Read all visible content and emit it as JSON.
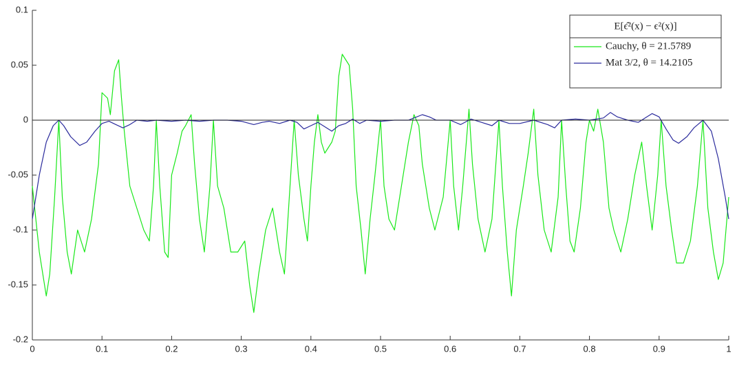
{
  "chart_data": {
    "type": "line",
    "legend_title": "E[ϵ̂²(x) − ϵ²(x)]",
    "legend_position": "top-right",
    "reference_line": 0,
    "xlim": [
      0,
      1
    ],
    "xticks": [
      0,
      0.1,
      0.2,
      0.3,
      0.4,
      0.5,
      0.6,
      0.7,
      0.8,
      0.9,
      1
    ],
    "ylim": [
      -0.2,
      0.1
    ],
    "yticks": [
      -0.2,
      -0.15,
      -0.1,
      -0.05,
      0,
      0.05,
      0.1
    ],
    "series": [
      {
        "name": "Cauchy, θ = 21.5789",
        "color": "#18e818",
        "x": [
          0,
          0.01,
          0.02,
          0.025,
          0.032,
          0.038,
          0.043,
          0.05,
          0.056,
          0.065,
          0.075,
          0.085,
          0.095,
          0.1,
          0.108,
          0.112,
          0.118,
          0.124,
          0.128,
          0.132,
          0.14,
          0.15,
          0.16,
          0.168,
          0.174,
          0.178,
          0.183,
          0.19,
          0.195,
          0.2,
          0.208,
          0.215,
          0.22,
          0.228,
          0.233,
          0.24,
          0.247,
          0.255,
          0.26,
          0.266,
          0.275,
          0.285,
          0.295,
          0.305,
          0.312,
          0.318,
          0.325,
          0.335,
          0.345,
          0.355,
          0.362,
          0.37,
          0.376,
          0.382,
          0.39,
          0.395,
          0.4,
          0.405,
          0.41,
          0.415,
          0.42,
          0.425,
          0.43,
          0.435,
          0.44,
          0.445,
          0.45,
          0.455,
          0.46,
          0.465,
          0.472,
          0.478,
          0.485,
          0.492,
          0.5,
          0.505,
          0.512,
          0.52,
          0.53,
          0.54,
          0.548,
          0.555,
          0.56,
          0.57,
          0.578,
          0.59,
          0.6,
          0.605,
          0.612,
          0.618,
          0.627,
          0.632,
          0.64,
          0.65,
          0.66,
          0.67,
          0.675,
          0.682,
          0.688,
          0.695,
          0.705,
          0.712,
          0.72,
          0.726,
          0.735,
          0.745,
          0.755,
          0.76,
          0.766,
          0.772,
          0.778,
          0.787,
          0.795,
          0.8,
          0.806,
          0.812,
          0.82,
          0.828,
          0.835,
          0.845,
          0.855,
          0.865,
          0.875,
          0.882,
          0.89,
          0.898,
          0.903,
          0.91,
          0.918,
          0.925,
          0.935,
          0.945,
          0.955,
          0.963,
          0.97,
          0.978,
          0.985,
          0.992,
          1
        ],
        "values": [
          -0.06,
          -0.12,
          -0.16,
          -0.14,
          -0.07,
          0,
          -0.07,
          -0.12,
          -0.14,
          -0.1,
          -0.12,
          -0.09,
          -0.04,
          0.025,
          0.02,
          0.005,
          0.045,
          0.055,
          0.02,
          -0.01,
          -0.06,
          -0.08,
          -0.1,
          -0.11,
          -0.06,
          0,
          -0.06,
          -0.12,
          -0.125,
          -0.05,
          -0.03,
          -0.01,
          -0.005,
          0.005,
          -0.04,
          -0.09,
          -0.12,
          -0.06,
          0,
          -0.06,
          -0.08,
          -0.12,
          -0.12,
          -0.11,
          -0.15,
          -0.175,
          -0.14,
          -0.1,
          -0.08,
          -0.12,
          -0.14,
          -0.06,
          0,
          -0.05,
          -0.09,
          -0.11,
          -0.06,
          -0.02,
          0.005,
          -0.02,
          -0.03,
          -0.025,
          -0.02,
          -0.01,
          0.04,
          0.06,
          0.055,
          0.05,
          0.01,
          -0.06,
          -0.1,
          -0.14,
          -0.09,
          -0.05,
          0,
          -0.06,
          -0.09,
          -0.1,
          -0.06,
          -0.02,
          0.005,
          -0.005,
          -0.04,
          -0.08,
          -0.1,
          -0.07,
          0,
          -0.06,
          -0.1,
          -0.06,
          0.01,
          -0.04,
          -0.09,
          -0.12,
          -0.09,
          0,
          -0.06,
          -0.12,
          -0.16,
          -0.1,
          -0.06,
          -0.03,
          0.01,
          -0.05,
          -0.1,
          -0.12,
          -0.07,
          0,
          -0.06,
          -0.11,
          -0.12,
          -0.08,
          -0.02,
          0,
          -0.01,
          0.01,
          -0.02,
          -0.08,
          -0.1,
          -0.12,
          -0.09,
          -0.05,
          -0.02,
          -0.06,
          -0.1,
          -0.05,
          0,
          -0.06,
          -0.1,
          -0.13,
          -0.13,
          -0.11,
          -0.06,
          0,
          -0.08,
          -0.12,
          -0.145,
          -0.13,
          -0.07
        ]
      },
      {
        "name": "Mat 3/2, θ = 14.2105",
        "color": "#2a2a9c",
        "x": [
          0,
          0.01,
          0.02,
          0.03,
          0.038,
          0.045,
          0.055,
          0.068,
          0.078,
          0.09,
          0.1,
          0.11,
          0.12,
          0.13,
          0.14,
          0.15,
          0.165,
          0.178,
          0.2,
          0.22,
          0.24,
          0.26,
          0.28,
          0.3,
          0.318,
          0.33,
          0.34,
          0.355,
          0.37,
          0.38,
          0.39,
          0.4,
          0.41,
          0.42,
          0.43,
          0.44,
          0.45,
          0.46,
          0.47,
          0.48,
          0.5,
          0.52,
          0.54,
          0.548,
          0.56,
          0.57,
          0.58,
          0.6,
          0.615,
          0.63,
          0.645,
          0.66,
          0.67,
          0.685,
          0.7,
          0.72,
          0.74,
          0.75,
          0.76,
          0.78,
          0.8,
          0.82,
          0.83,
          0.84,
          0.855,
          0.87,
          0.88,
          0.89,
          0.9,
          0.91,
          0.92,
          0.928,
          0.94,
          0.95,
          0.963,
          0.975,
          0.985,
          0.995,
          1
        ],
        "values": [
          -0.09,
          -0.05,
          -0.02,
          -0.005,
          0,
          -0.005,
          -0.015,
          -0.023,
          -0.02,
          -0.01,
          -0.003,
          -0.001,
          -0.004,
          -0.007,
          -0.004,
          0,
          -0.001,
          0,
          -0.001,
          0,
          -0.001,
          0,
          0,
          -0.001,
          -0.004,
          -0.002,
          -0.001,
          -0.003,
          0,
          -0.002,
          -0.008,
          -0.005,
          -0.002,
          -0.006,
          -0.01,
          -0.005,
          -0.003,
          0.001,
          -0.003,
          0,
          -0.001,
          0,
          0,
          0.002,
          0.005,
          0.003,
          0,
          0,
          -0.004,
          0.001,
          -0.002,
          -0.005,
          0,
          -0.003,
          -0.003,
          0,
          -0.004,
          -0.007,
          0,
          0.001,
          0,
          0.002,
          0.007,
          0.003,
          0,
          -0.002,
          0.002,
          0.006,
          0.003,
          -0.008,
          -0.018,
          -0.021,
          -0.015,
          -0.007,
          0,
          -0.01,
          -0.035,
          -0.07,
          -0.09
        ]
      }
    ]
  }
}
